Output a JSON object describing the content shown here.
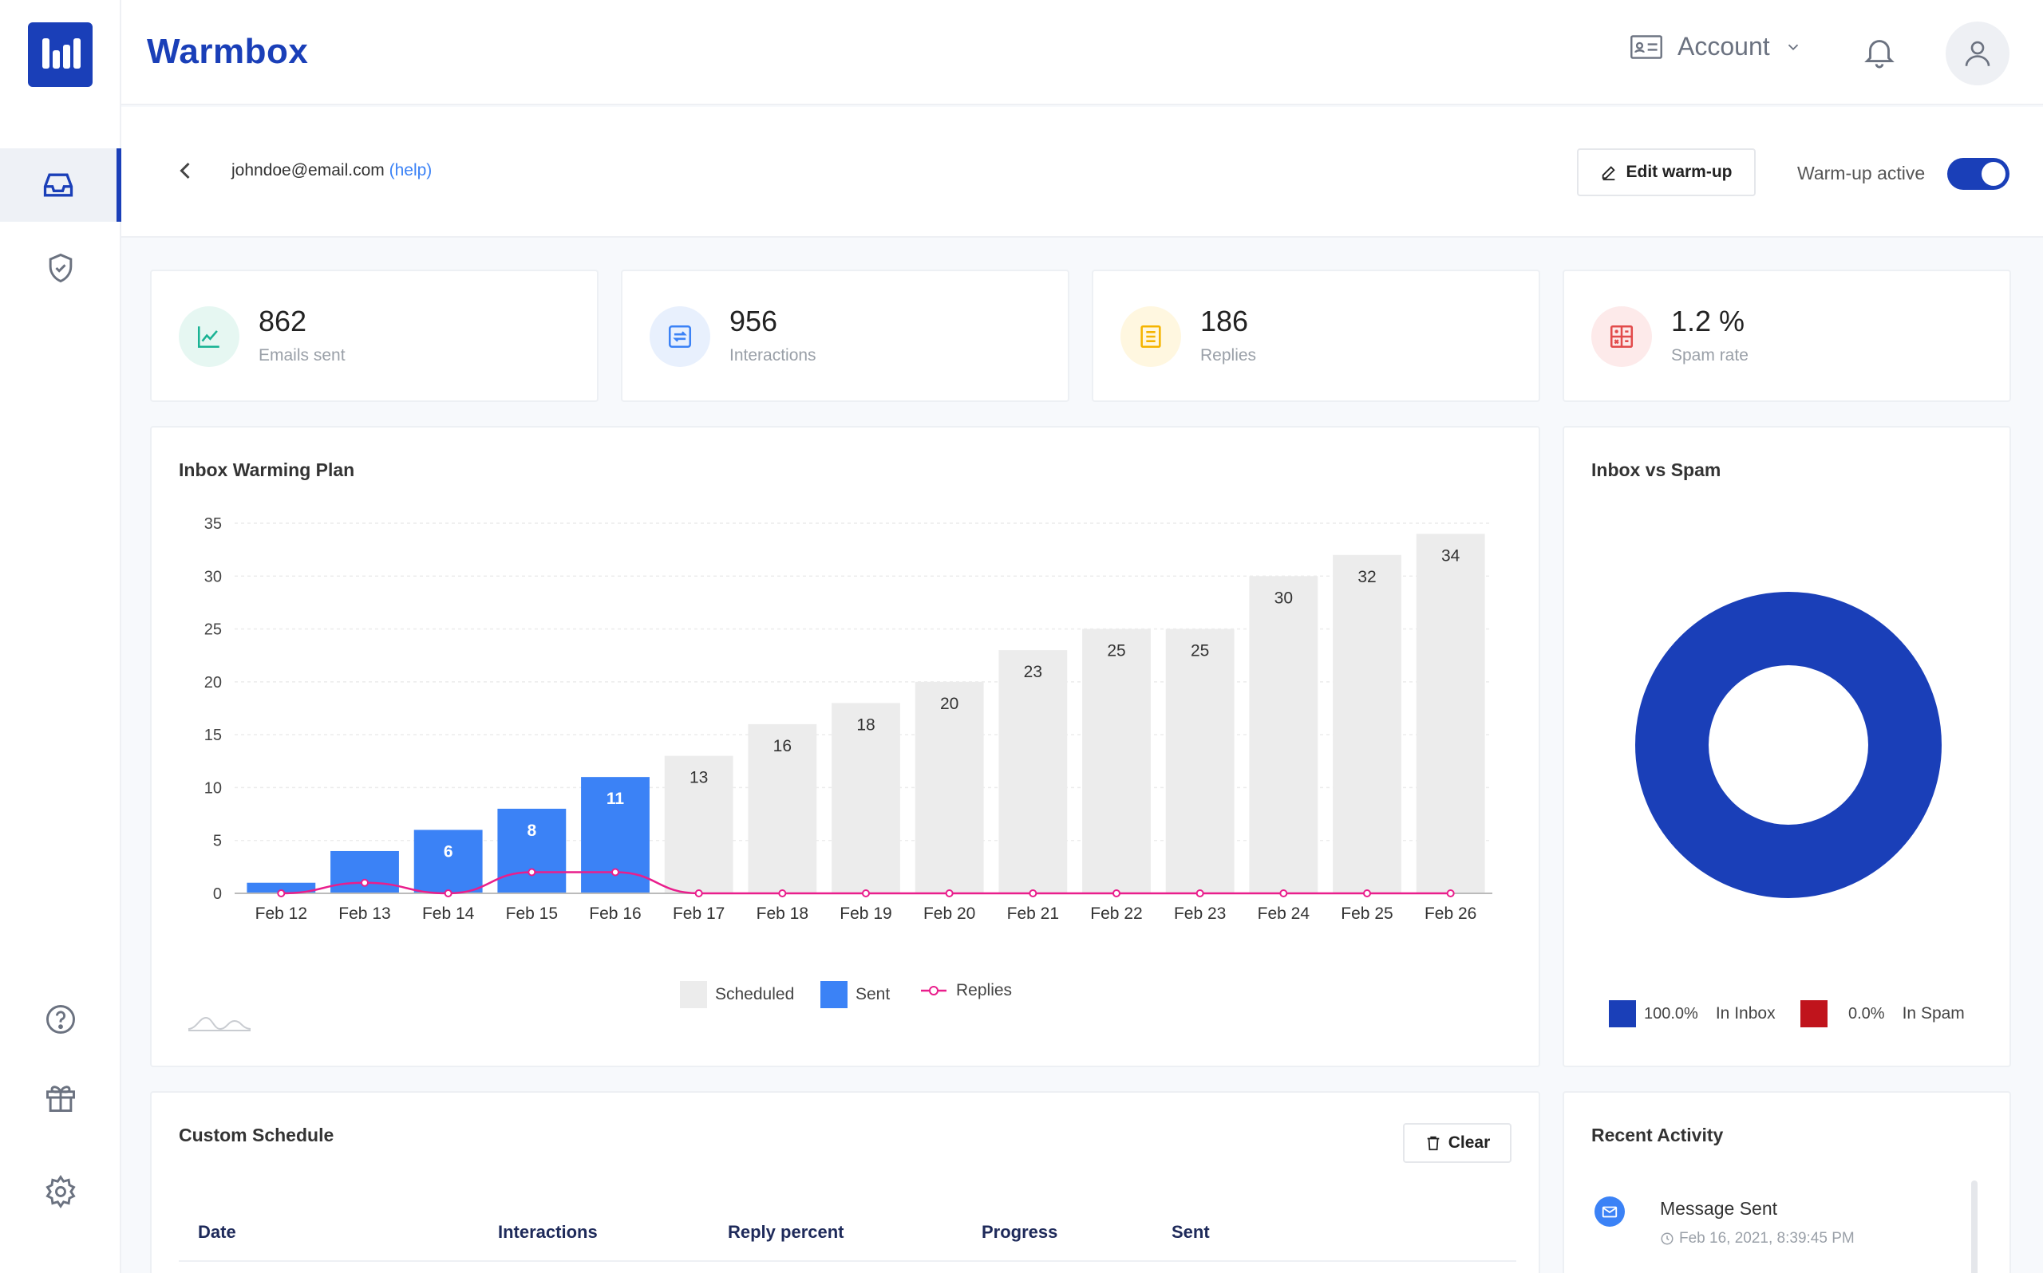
{
  "app": {
    "brand": "Warmbox"
  },
  "header": {
    "account_label": "Account"
  },
  "sidebar": {
    "items": [
      {
        "name": "inbox",
        "icon": "inbox-icon",
        "active": true
      },
      {
        "name": "security",
        "icon": "shield-check-icon",
        "active": false
      },
      {
        "name": "help",
        "icon": "help-circle-icon",
        "active": false
      },
      {
        "name": "gifts",
        "icon": "gift-icon",
        "active": false
      },
      {
        "name": "settings",
        "icon": "gear-icon",
        "active": false
      }
    ]
  },
  "subheader": {
    "email": "johndoe@email.com",
    "help": "(help)",
    "edit_button": "Edit warm-up",
    "toggle_label": "Warm-up active",
    "toggle_on": true
  },
  "stats": [
    {
      "value": "862",
      "label": "Emails sent",
      "icon": "line-chart-icon",
      "color": "#1ab394",
      "bg": "#e6f7f2"
    },
    {
      "value": "956",
      "label": "Interactions",
      "icon": "repeat-icon",
      "color": "#3b82f6",
      "bg": "#e8f0fd"
    },
    {
      "value": "186",
      "label": "Replies",
      "icon": "list-icon",
      "color": "#f5b400",
      "bg": "#fff7e0"
    },
    {
      "value": "1.2 %",
      "label": "Spam rate",
      "icon": "calculator-icon",
      "color": "#e24b4b",
      "bg": "#fdeaea"
    }
  ],
  "warming_plan": {
    "title": "Inbox Warming Plan",
    "legend": {
      "scheduled": "Scheduled",
      "sent": "Sent",
      "replies": "Replies"
    }
  },
  "chart_data": {
    "type": "bar",
    "categories": [
      "Feb 12",
      "Feb 13",
      "Feb 14",
      "Feb 15",
      "Feb 16",
      "Feb 17",
      "Feb 18",
      "Feb 19",
      "Feb 20",
      "Feb 21",
      "Feb 22",
      "Feb 23",
      "Feb 24",
      "Feb 25",
      "Feb 26"
    ],
    "series": [
      {
        "name": "Scheduled",
        "values": [
          1,
          4,
          6,
          8,
          11,
          13,
          16,
          18,
          20,
          23,
          25,
          25,
          30,
          32,
          34
        ],
        "color": "#ececec"
      },
      {
        "name": "Sent",
        "values": [
          1,
          4,
          6,
          8,
          11,
          0,
          0,
          0,
          0,
          0,
          0,
          0,
          0,
          0,
          0
        ],
        "color": "#3b82f6"
      },
      {
        "name": "Replies",
        "values": [
          0,
          1,
          0,
          2,
          2,
          0,
          0,
          0,
          0,
          0,
          0,
          0,
          0,
          0,
          0
        ],
        "color": "#e91e8c"
      }
    ],
    "bar_labels": [
      "",
      "",
      "6",
      "8",
      "11",
      "13",
      "16",
      "18",
      "20",
      "23",
      "25",
      "25",
      "30",
      "32",
      "34"
    ],
    "ylim": [
      0,
      35
    ],
    "yticks": [
      0,
      5,
      10,
      15,
      20,
      25,
      30,
      35
    ],
    "grid": true,
    "legend_position": "bottom"
  },
  "inbox_vs_spam": {
    "title": "Inbox vs Spam",
    "inbox_pct": "100.0%",
    "inbox_label": "In Inbox",
    "spam_pct": "0.0%",
    "spam_label": "In Spam",
    "inbox_fraction": 1.0,
    "inbox_color": "#1a3fb8",
    "spam_color": "#c0141c"
  },
  "custom_schedule": {
    "title": "Custom Schedule",
    "clear_button": "Clear",
    "columns": [
      "Date",
      "Interactions",
      "Reply percent",
      "Progress",
      "Sent"
    ]
  },
  "recent_activity": {
    "title": "Recent Activity",
    "items": [
      {
        "title": "Message Sent",
        "time": "Feb 16, 2021, 8:39:45 PM",
        "icon": "mail-icon"
      }
    ]
  }
}
